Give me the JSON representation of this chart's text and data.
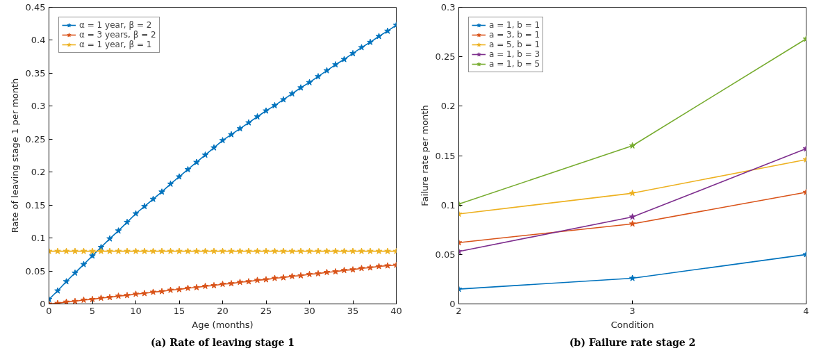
{
  "chart_data": [
    {
      "type": "line",
      "xlabel": "Age (months)",
      "ylabel": "Rate of leaving stage 1 per month",
      "annotations": [
        "(a) Rate of leaving stage 1"
      ],
      "x": [
        0,
        1,
        2,
        3,
        4,
        5,
        6,
        7,
        8,
        9,
        10,
        11,
        12,
        13,
        14,
        15,
        16,
        17,
        18,
        19,
        20,
        21,
        22,
        23,
        24,
        25,
        26,
        27,
        28,
        29,
        30,
        31,
        32,
        33,
        34,
        35,
        36,
        37,
        38,
        39,
        40
      ],
      "series": [
        {
          "name": "α = 1 year, β = 2",
          "color": "#0072bd",
          "values": [
            0.007,
            0.02,
            0.034,
            0.047,
            0.06,
            0.073,
            0.086,
            0.099,
            0.111,
            0.124,
            0.137,
            0.148,
            0.159,
            0.17,
            0.182,
            0.193,
            0.204,
            0.215,
            0.226,
            0.237,
            0.248,
            0.257,
            0.266,
            0.275,
            0.284,
            0.293,
            0.301,
            0.31,
            0.319,
            0.328,
            0.336,
            0.345,
            0.354,
            0.363,
            0.371,
            0.38,
            0.389,
            0.397,
            0.406,
            0.414,
            0.423
          ]
        },
        {
          "name": "α = 3 years, β = 2",
          "color": "#d95319",
          "values": [
            0.0,
            0.001,
            0.003,
            0.004,
            0.006,
            0.007,
            0.009,
            0.01,
            0.012,
            0.013,
            0.015,
            0.016,
            0.018,
            0.019,
            0.021,
            0.022,
            0.024,
            0.025,
            0.027,
            0.028,
            0.03,
            0.031,
            0.033,
            0.034,
            0.036,
            0.037,
            0.039,
            0.04,
            0.042,
            0.043,
            0.045,
            0.046,
            0.048,
            0.049,
            0.051,
            0.052,
            0.054,
            0.055,
            0.057,
            0.058,
            0.059
          ]
        },
        {
          "name": "α = 1 year, β = 1",
          "color": "#edb120",
          "values": [
            0.08,
            0.08,
            0.08,
            0.08,
            0.08,
            0.08,
            0.08,
            0.08,
            0.08,
            0.08,
            0.08,
            0.08,
            0.08,
            0.08,
            0.08,
            0.08,
            0.08,
            0.08,
            0.08,
            0.08,
            0.08,
            0.08,
            0.08,
            0.08,
            0.08,
            0.08,
            0.08,
            0.08,
            0.08,
            0.08,
            0.08,
            0.08,
            0.08,
            0.08,
            0.08,
            0.08,
            0.08,
            0.08,
            0.08,
            0.08,
            0.08
          ]
        }
      ],
      "xlim": [
        0,
        40
      ],
      "xticks": [
        0,
        5,
        10,
        15,
        20,
        25,
        30,
        35,
        40
      ],
      "ylim": [
        0,
        0.45
      ],
      "yticks": [
        0,
        0.05,
        0.1,
        0.15,
        0.2,
        0.25,
        0.3,
        0.35,
        0.4,
        0.45
      ],
      "grid": false,
      "legend": "top left",
      "marker": "star",
      "line_style": "solid"
    },
    {
      "type": "line",
      "xlabel": "Condition",
      "ylabel": "Failure rate per month",
      "annotations": [
        "(b) Failure rate stage 2"
      ],
      "x": [
        2,
        3,
        4
      ],
      "series": [
        {
          "name": "a = 1, b = 1",
          "color": "#0072bd",
          "values": [
            0.015,
            0.026,
            0.05
          ]
        },
        {
          "name": "a = 3, b = 1",
          "color": "#d95319",
          "values": [
            0.062,
            0.081,
            0.113
          ]
        },
        {
          "name": "a = 5, b = 1",
          "color": "#edb120",
          "values": [
            0.091,
            0.112,
            0.146
          ]
        },
        {
          "name": "a = 1, b = 3",
          "color": "#7e2f8e",
          "values": [
            0.053,
            0.088,
            0.157
          ]
        },
        {
          "name": "a = 1, b = 5",
          "color": "#77ac30",
          "values": [
            0.101,
            0.16,
            0.268
          ]
        }
      ],
      "xlim": [
        2,
        4
      ],
      "xticks": [
        2,
        3,
        4
      ],
      "ylim": [
        0,
        0.3
      ],
      "yticks": [
        0,
        0.05,
        0.1,
        0.15,
        0.2,
        0.25,
        0.3
      ],
      "grid": false,
      "legend": "top left",
      "marker": "star",
      "line_style": "solid"
    }
  ]
}
